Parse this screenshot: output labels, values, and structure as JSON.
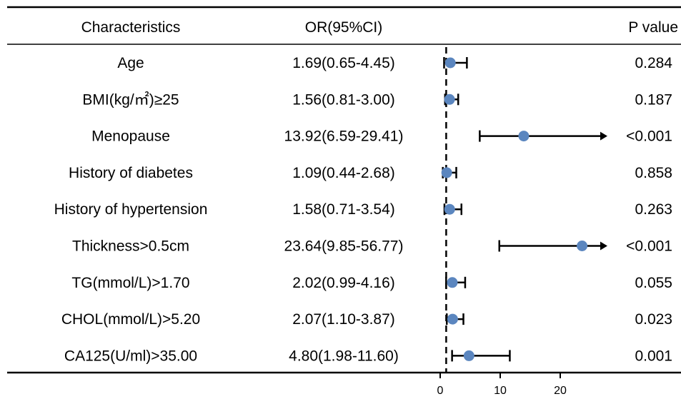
{
  "headers": {
    "characteristics": "Characteristics",
    "or_ci": "OR(95%CI)",
    "p_value": "P value"
  },
  "chart_data": {
    "type": "forest",
    "title": "",
    "xlabel": "",
    "ylabel": "",
    "reference_line": 1,
    "xlim": [
      0,
      27
    ],
    "x_ticks": [
      "0",
      "10",
      "20"
    ],
    "x_tick_values": [
      0,
      10,
      20
    ],
    "colors": {
      "point": "#5b86bf",
      "line": "#000000"
    },
    "rows": [
      {
        "label": "Age",
        "or_text": "1.69(0.65-4.45)",
        "or": 1.69,
        "lower": 0.65,
        "upper": 4.45,
        "upper_arrow": false,
        "p": "0.284"
      },
      {
        "label": "BMI(kg/㎡)≥25",
        "or_text": "1.56(0.81-3.00)",
        "or": 1.56,
        "lower": 0.81,
        "upper": 3.0,
        "upper_arrow": false,
        "p": "0.187"
      },
      {
        "label": "Menopause",
        "or_text": "13.92(6.59-29.41)",
        "or": 13.92,
        "lower": 6.59,
        "upper": 29.41,
        "upper_arrow": true,
        "p": "<0.001"
      },
      {
        "label": "History of diabetes",
        "or_text": "1.09(0.44-2.68)",
        "or": 1.09,
        "lower": 0.44,
        "upper": 2.68,
        "upper_arrow": false,
        "p": "0.858"
      },
      {
        "label": "History of hypertension",
        "or_text": "1.58(0.71-3.54)",
        "or": 1.58,
        "lower": 0.71,
        "upper": 3.54,
        "upper_arrow": false,
        "p": "0.263"
      },
      {
        "label": "Thickness>0.5cm",
        "or_text": "23.64(9.85-56.77)",
        "or": 23.64,
        "lower": 9.85,
        "upper": 56.77,
        "upper_arrow": true,
        "p": "<0.001"
      },
      {
        "label": "TG(mmol/L)>1.70",
        "or_text": "2.02(0.99-4.16)",
        "or": 2.02,
        "lower": 0.99,
        "upper": 4.16,
        "upper_arrow": false,
        "p": "0.055"
      },
      {
        "label": "CHOL(mmol/L)>5.20",
        "or_text": "2.07(1.10-3.87)",
        "or": 2.07,
        "lower": 1.1,
        "upper": 3.87,
        "upper_arrow": false,
        "p": "0.023"
      },
      {
        "label": "CA125(U/ml)>35.00",
        "or_text": "4.80(1.98-11.60)",
        "or": 4.8,
        "lower": 1.98,
        "upper": 11.6,
        "upper_arrow": false,
        "p": "0.001"
      }
    ]
  }
}
